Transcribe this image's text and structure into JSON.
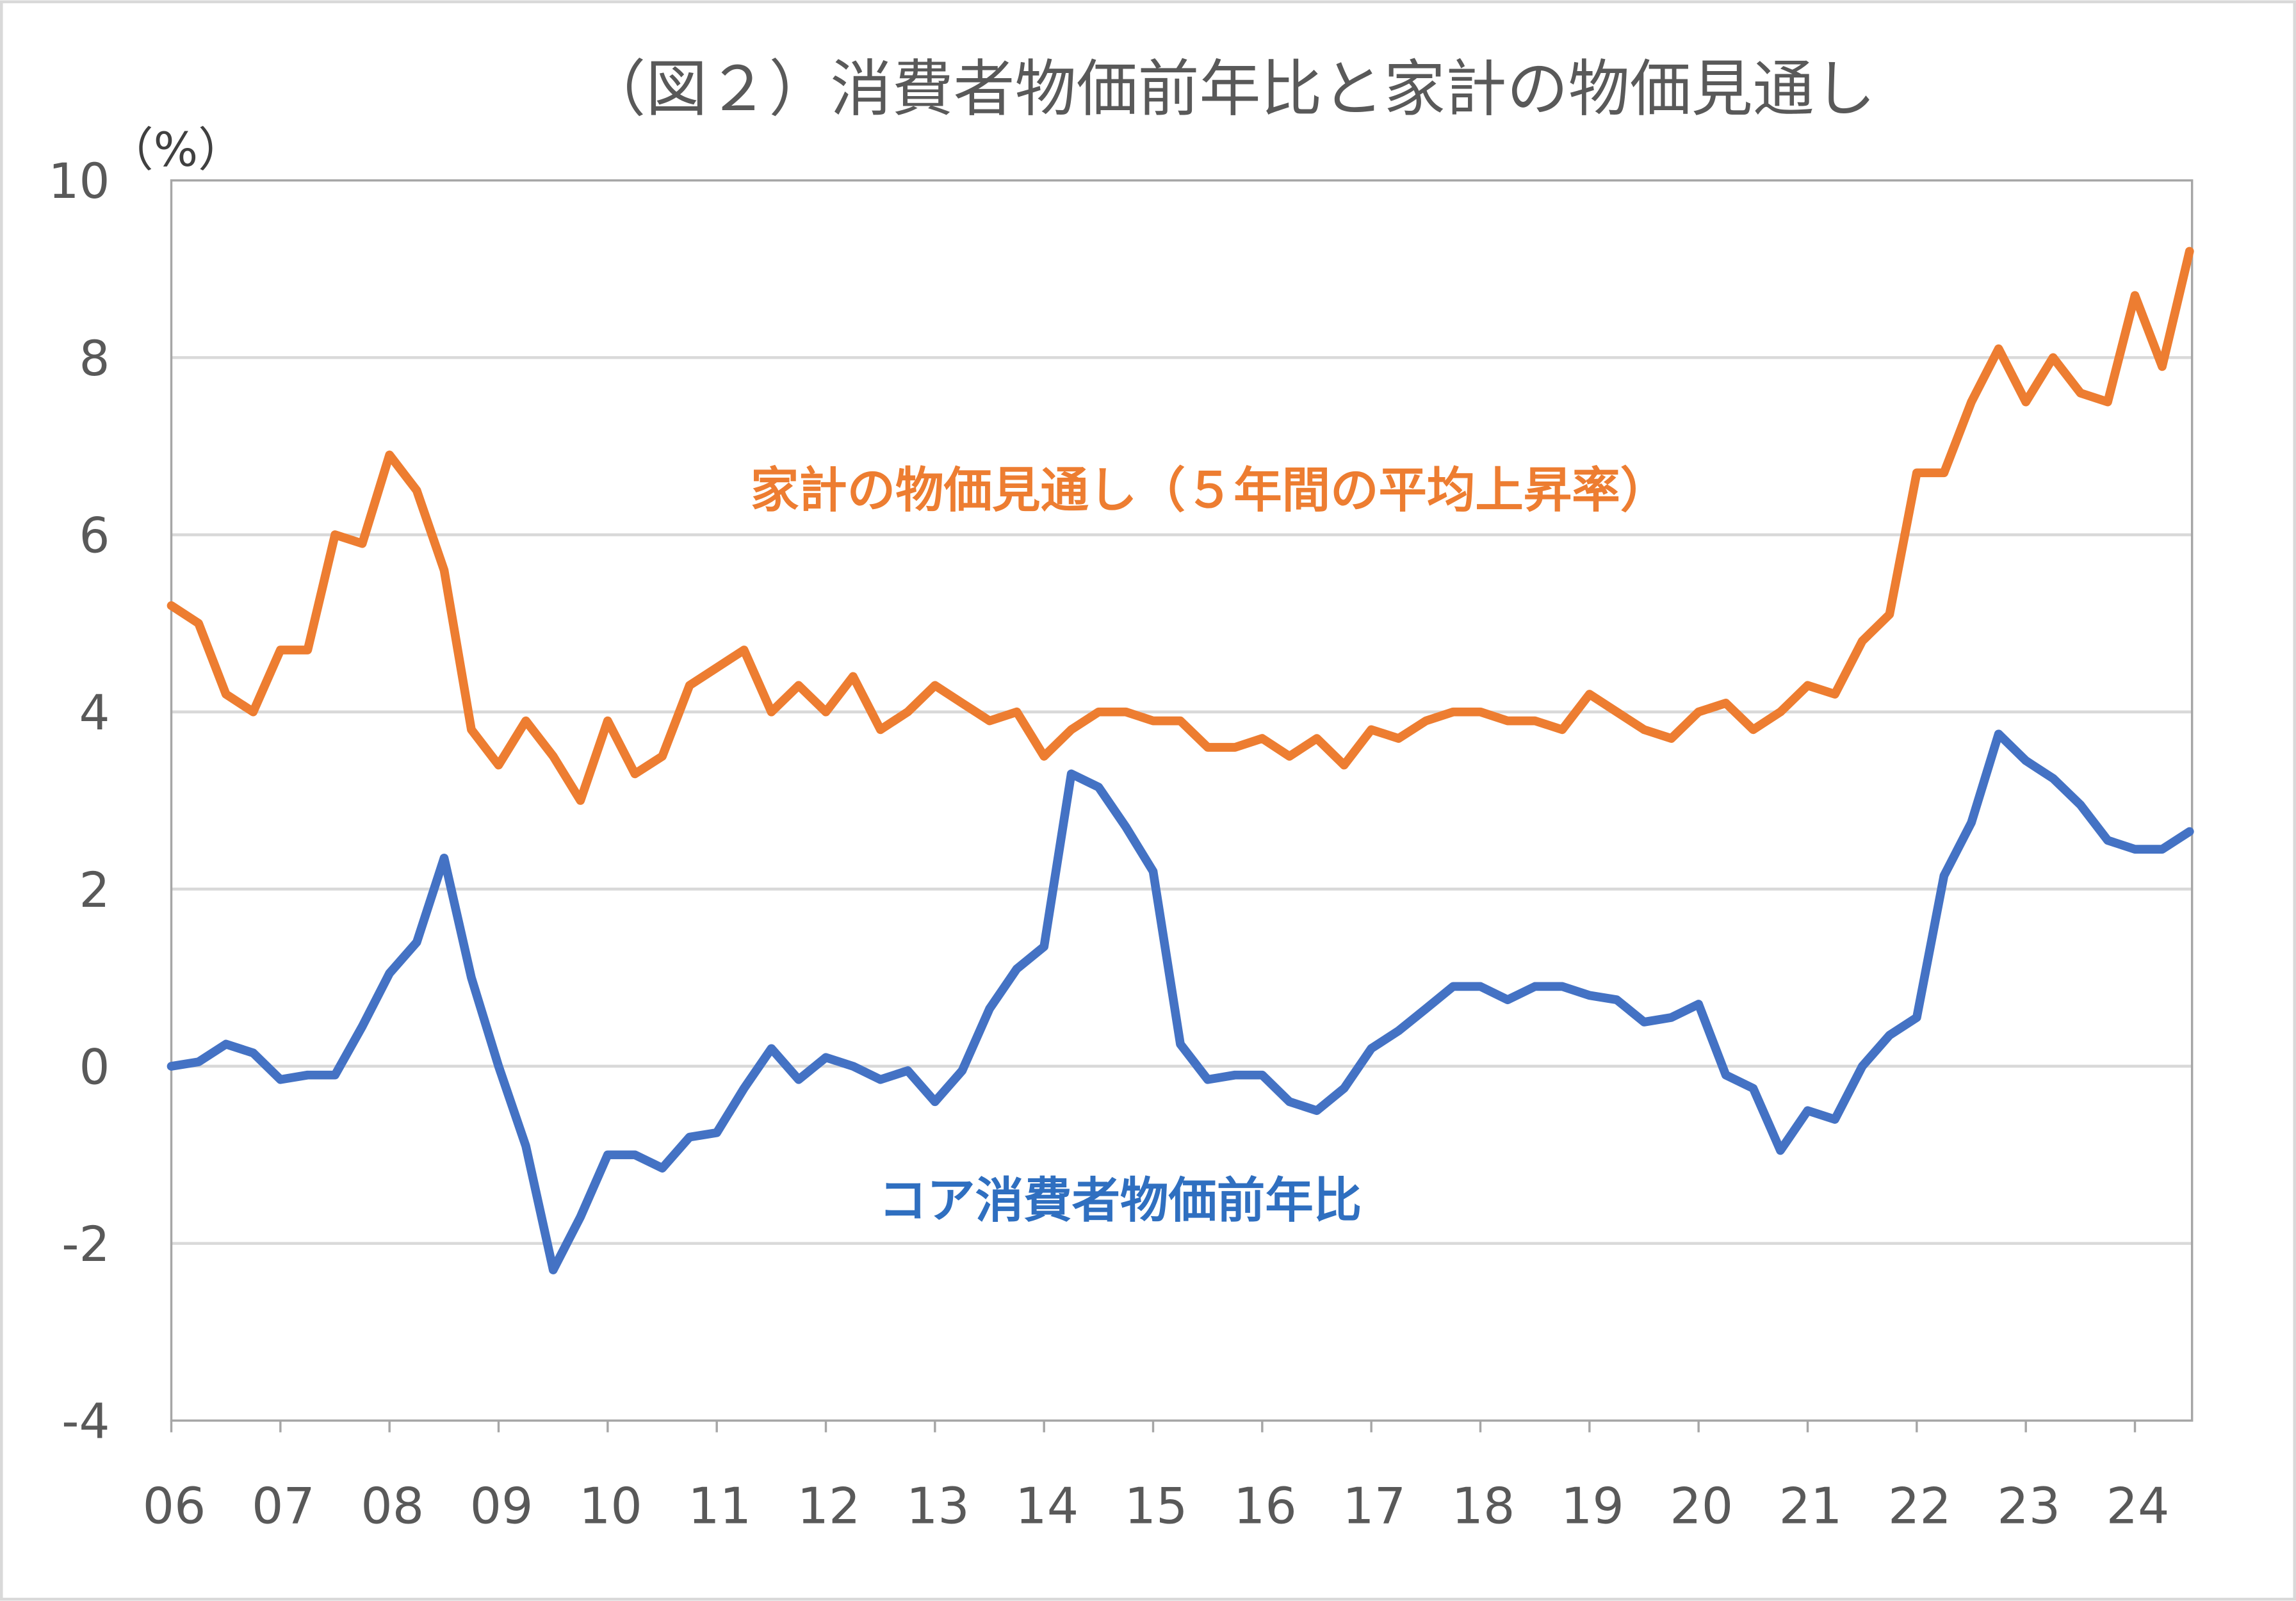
{
  "chart_data": {
    "type": "line",
    "title": "（図２）消費者物価前年比と家計の物価見通し",
    "ylabel": "（%）",
    "xlabel": "",
    "ylim": [
      -4,
      10
    ],
    "yticks": [
      -4,
      -2,
      0,
      2,
      4,
      6,
      8,
      10
    ],
    "ytick_labels": [
      "-4",
      "-2",
      "0",
      "2",
      "4",
      "6",
      "8",
      "10"
    ],
    "xtick_labels": [
      "06",
      "07",
      "08",
      "09",
      "10",
      "11",
      "12",
      "13",
      "14",
      "15",
      "16",
      "17",
      "18",
      "19",
      "20",
      "21",
      "22",
      "23",
      "24"
    ],
    "x_start": "2006Q1",
    "frequency": "quarterly",
    "grid": true,
    "series": [
      {
        "name": "家計の物価見通し（５年間の平均上昇率）",
        "color": "#ED7D31",
        "values": [
          5.2,
          5.0,
          4.2,
          4.0,
          4.7,
          4.7,
          6.0,
          5.9,
          6.9,
          6.5,
          5.6,
          3.8,
          3.4,
          3.9,
          3.5,
          3.0,
          3.9,
          3.3,
          3.5,
          4.3,
          4.5,
          4.7,
          4.0,
          4.3,
          4.0,
          4.4,
          3.8,
          4.0,
          4.3,
          4.1,
          3.9,
          4.0,
          3.5,
          3.8,
          4.0,
          4.0,
          3.9,
          3.9,
          3.6,
          3.6,
          3.7,
          3.5,
          3.7,
          3.4,
          3.8,
          3.7,
          3.9,
          4.0,
          4.0,
          3.9,
          3.9,
          3.8,
          4.2,
          4.0,
          3.8,
          3.7,
          4.0,
          4.1,
          3.8,
          4.0,
          4.3,
          4.2,
          4.8,
          5.1,
          6.7,
          6.7,
          7.5,
          8.1,
          7.5,
          8.0,
          7.6,
          7.5,
          8.7,
          7.9,
          9.2
        ]
      },
      {
        "name": "コア消費者物価前年比",
        "color": "#4472C4",
        "values": [
          0.0,
          0.05,
          0.25,
          0.15,
          -0.15,
          -0.1,
          -0.1,
          0.45,
          1.05,
          1.4,
          2.35,
          1.0,
          0.0,
          -0.9,
          -2.3,
          -1.7,
          -1.0,
          -1.0,
          -1.15,
          -0.8,
          -0.75,
          -0.25,
          0.2,
          -0.15,
          0.1,
          0.0,
          -0.15,
          -0.05,
          -0.4,
          -0.05,
          0.65,
          1.1,
          1.35,
          3.3,
          3.15,
          2.7,
          2.2,
          0.25,
          -0.15,
          -0.1,
          -0.1,
          -0.4,
          -0.5,
          -0.25,
          0.2,
          0.4,
          0.65,
          0.9,
          0.9,
          0.75,
          0.9,
          0.9,
          0.8,
          0.75,
          0.5,
          0.55,
          0.7,
          -0.1,
          -0.25,
          -0.95,
          -0.5,
          -0.6,
          0.0,
          0.35,
          0.55,
          2.15,
          2.75,
          3.75,
          3.45,
          3.25,
          2.95,
          2.55,
          2.45,
          2.45,
          2.65
        ]
      }
    ]
  }
}
